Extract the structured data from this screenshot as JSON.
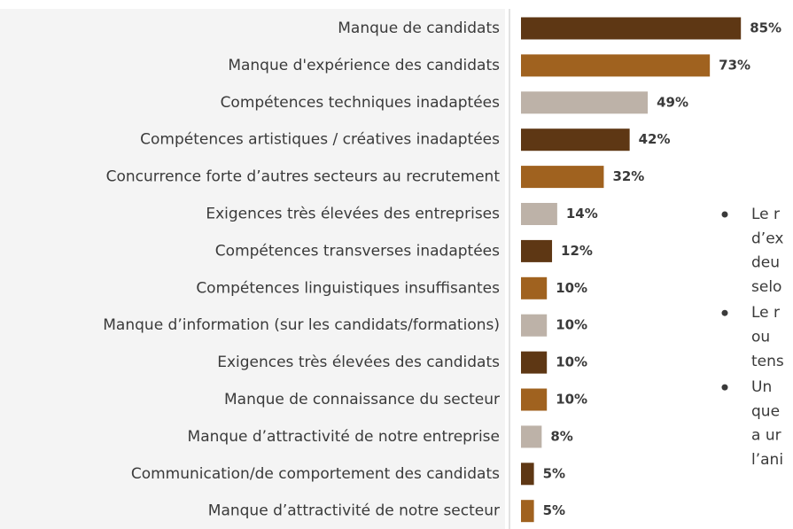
{
  "chart_data": {
    "type": "barh",
    "categories": [
      "Manque de candidats",
      "Manque d'expérience des candidats",
      "Compétences techniques inadaptées",
      "Compétences artistiques / créatives inadaptées",
      "Concurrence forte d’autres secteurs au recrutement",
      "Exigences très élevées des entreprises",
      "Compétences transverses inadaptées",
      "Compétences linguistiques insuffisantes",
      "Manque d’information (sur les candidats/formations)",
      "Exigences très élevées des candidats",
      "Manque de connaissance du secteur",
      "Manque d’attractivité de notre entreprise",
      "Communication/de comportement des candidats",
      "Manque d’attractivité de notre secteur"
    ],
    "values": [
      85,
      73,
      49,
      42,
      32,
      14,
      12,
      10,
      10,
      10,
      10,
      8,
      5,
      5
    ],
    "value_labels": [
      "85%",
      "73%",
      "49%",
      "42%",
      "32%",
      "14%",
      "12%",
      "10%",
      "10%",
      "10%",
      "10%",
      "8%",
      "5%",
      "5%"
    ],
    "colors": [
      "#5e3714",
      "#a0621f",
      "#bdb2a8",
      "#5e3714",
      "#a0621f",
      "#bdb2a8",
      "#5e3714",
      "#a0621f",
      "#bdb2a8",
      "#5e3714",
      "#a0621f",
      "#bdb2a8",
      "#5e3714",
      "#a0621f"
    ]
  },
  "notes": [
    [
      "Le r",
      "d’ex",
      "deu",
      "selo"
    ],
    [
      "Le r",
      "ou",
      "tens"
    ],
    [
      "Un",
      "que",
      "a ur",
      "l’ani"
    ]
  ]
}
